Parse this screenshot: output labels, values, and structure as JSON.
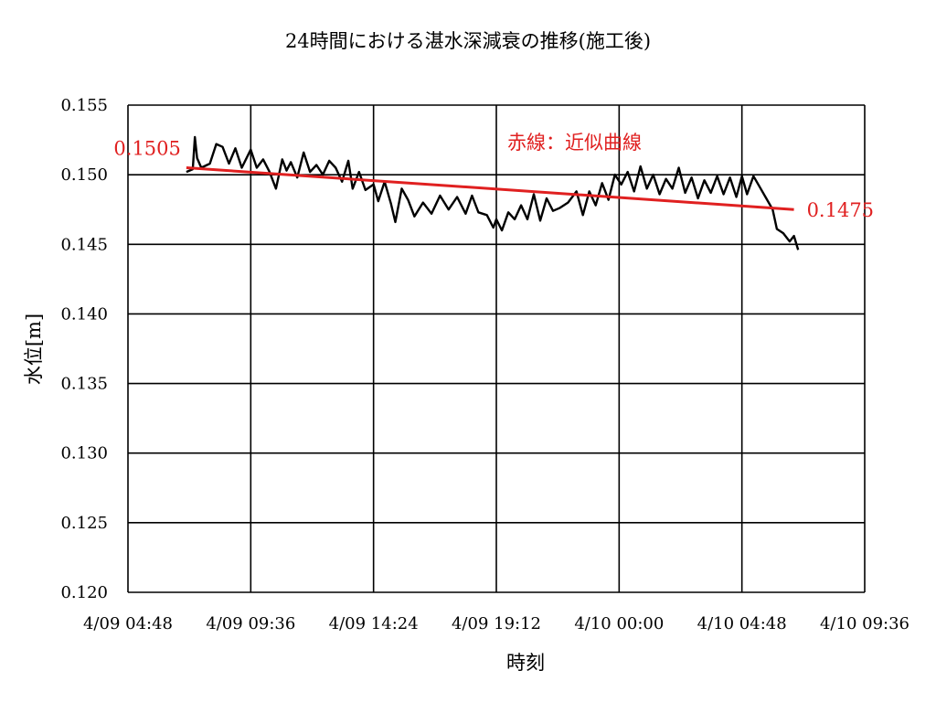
{
  "chart_data": {
    "type": "line",
    "title": "24時間における湛水深減衰の推移(施工後)",
    "xlabel": "時刻",
    "ylabel": "水位[m]",
    "ylim": [
      0.12,
      0.155
    ],
    "yticks": [
      "0.120",
      "0.125",
      "0.130",
      "0.135",
      "0.140",
      "0.145",
      "0.150",
      "0.155"
    ],
    "xlim": [
      "4/09 04:48",
      "4/10 09:36"
    ],
    "xticks": [
      "4/09 04:48",
      "4/09 09:36",
      "4/09 14:24",
      "4/09 19:12",
      "4/10 00:00",
      "4/10 04:48",
      "4/10 09:36"
    ],
    "grid": true,
    "series": [
      {
        "name": "",
        "color": "#000000",
        "points": [
          [
            "4/09 07:05",
            0.1502
          ],
          [
            "4/09 07:20",
            0.1504
          ],
          [
            "4/09 07:25",
            0.1527
          ],
          [
            "4/09 07:30",
            0.1512
          ],
          [
            "4/09 07:40",
            0.1505
          ],
          [
            "4/09 08:00",
            0.1508
          ],
          [
            "4/09 08:15",
            0.1522
          ],
          [
            "4/09 08:30",
            0.152
          ],
          [
            "4/09 08:45",
            0.1508
          ],
          [
            "4/09 09:00",
            0.1519
          ],
          [
            "4/09 09:15",
            0.1505
          ],
          [
            "4/09 09:36",
            0.1518
          ],
          [
            "4/09 09:50",
            0.1505
          ],
          [
            "4/09 10:05",
            0.1511
          ],
          [
            "4/09 10:20",
            0.1502
          ],
          [
            "4/09 10:35",
            0.149
          ],
          [
            "4/09 10:50",
            0.1511
          ],
          [
            "4/09 11:00",
            0.1503
          ],
          [
            "4/09 11:10",
            0.1509
          ],
          [
            "4/09 11:25",
            0.1498
          ],
          [
            "4/09 11:40",
            0.1516
          ],
          [
            "4/09 11:55",
            0.1502
          ],
          [
            "4/09 12:10",
            0.1507
          ],
          [
            "4/09 12:25",
            0.15
          ],
          [
            "4/09 12:40",
            0.151
          ],
          [
            "4/09 12:55",
            0.1505
          ],
          [
            "4/09 13:10",
            0.1495
          ],
          [
            "4/09 13:25",
            0.151
          ],
          [
            "4/09 13:35",
            0.149
          ],
          [
            "4/09 13:50",
            0.1502
          ],
          [
            "4/09 14:05",
            0.1489
          ],
          [
            "4/09 14:24",
            0.1493
          ],
          [
            "4/09 14:35",
            0.1481
          ],
          [
            "4/09 14:50",
            0.1495
          ],
          [
            "4/09 15:05",
            0.1479
          ],
          [
            "4/09 15:15",
            0.1466
          ],
          [
            "4/09 15:30",
            0.149
          ],
          [
            "4/09 15:45",
            0.1482
          ],
          [
            "4/09 16:00",
            0.147
          ],
          [
            "4/09 16:20",
            0.148
          ],
          [
            "4/09 16:40",
            0.1472
          ],
          [
            "4/09 17:00",
            0.1485
          ],
          [
            "4/09 17:20",
            0.1475
          ],
          [
            "4/09 17:40",
            0.1484
          ],
          [
            "4/09 18:00",
            0.1472
          ],
          [
            "4/09 18:15",
            0.1485
          ],
          [
            "4/09 18:30",
            0.1473
          ],
          [
            "4/09 18:50",
            0.1471
          ],
          [
            "4/09 19:05",
            0.1462
          ],
          [
            "4/09 19:12",
            0.1468
          ],
          [
            "4/09 19:25",
            0.146
          ],
          [
            "4/09 19:40",
            0.1473
          ],
          [
            "4/09 19:55",
            0.1468
          ],
          [
            "4/09 20:10",
            0.1478
          ],
          [
            "4/09 20:25",
            0.1468
          ],
          [
            "4/09 20:40",
            0.1486
          ],
          [
            "4/09 20:55",
            0.1467
          ],
          [
            "4/09 21:10",
            0.1483
          ],
          [
            "4/09 21:25",
            0.1474
          ],
          [
            "4/09 21:40",
            0.1476
          ],
          [
            "4/09 22:00",
            0.148
          ],
          [
            "4/09 22:20",
            0.1488
          ],
          [
            "4/09 22:35",
            0.1471
          ],
          [
            "4/09 22:50",
            0.1488
          ],
          [
            "4/09 23:05",
            0.1478
          ],
          [
            "4/09 23:20",
            0.1494
          ],
          [
            "4/09 23:35",
            0.1482
          ],
          [
            "4/09 23:50",
            0.15
          ],
          [
            "4/10 00:05",
            0.1493
          ],
          [
            "4/10 00:20",
            0.1502
          ],
          [
            "4/10 00:35",
            0.1488
          ],
          [
            "4/10 00:50",
            0.1506
          ],
          [
            "4/10 01:05",
            0.149
          ],
          [
            "4/10 01:20",
            0.15
          ],
          [
            "4/10 01:35",
            0.1486
          ],
          [
            "4/10 01:50",
            0.1497
          ],
          [
            "4/10 02:05",
            0.149
          ],
          [
            "4/10 02:20",
            0.1505
          ],
          [
            "4/10 02:35",
            0.1487
          ],
          [
            "4/10 02:50",
            0.1498
          ],
          [
            "4/10 03:05",
            0.1483
          ],
          [
            "4/10 03:20",
            0.1496
          ],
          [
            "4/10 03:35",
            0.1487
          ],
          [
            "4/10 03:50",
            0.1499
          ],
          [
            "4/10 04:05",
            0.1486
          ],
          [
            "4/10 04:20",
            0.1498
          ],
          [
            "4/10 04:35",
            0.1484
          ],
          [
            "4/10 04:48",
            0.1499
          ],
          [
            "4/10 05:00",
            0.1486
          ],
          [
            "4/10 05:15",
            0.1499
          ],
          [
            "4/10 05:30",
            0.1491
          ],
          [
            "4/10 05:45",
            0.1483
          ],
          [
            "4/10 06:00",
            0.1475
          ],
          [
            "4/10 06:10",
            0.1461
          ],
          [
            "4/10 06:25",
            0.1458
          ],
          [
            "4/10 06:40",
            0.1452
          ],
          [
            "4/10 06:50",
            0.1456
          ],
          [
            "4/10 07:00",
            0.1446
          ]
        ]
      }
    ],
    "trendline": {
      "color": "#e02020",
      "label": "赤線：近似曲線",
      "start": {
        "x": "4/09 07:05",
        "y": 0.1505,
        "label": "0.1505"
      },
      "end": {
        "x": "4/10 06:50",
        "y": 0.1475,
        "label": "0.1475"
      }
    }
  }
}
